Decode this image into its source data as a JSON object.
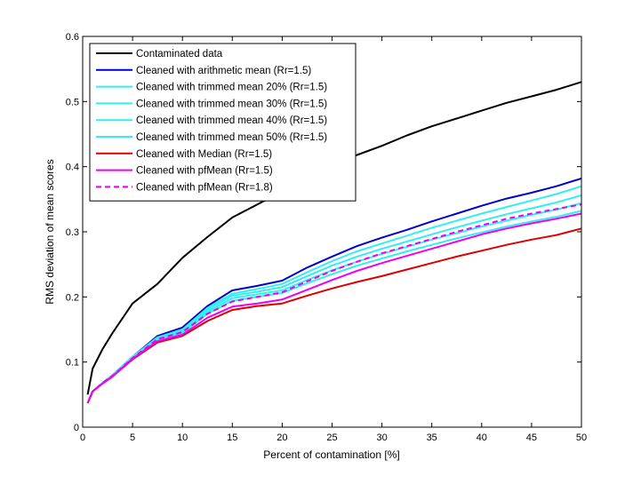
{
  "chart_data": {
    "type": "line",
    "xlabel": "Percent of contamination [%]",
    "ylabel": "RMS deviation of mean scores",
    "xlim": [
      0,
      50
    ],
    "ylim": [
      0,
      0.6
    ],
    "xticks": [
      0,
      5,
      10,
      15,
      20,
      25,
      30,
      35,
      40,
      45,
      50
    ],
    "yticks": [
      0,
      0.1,
      0.2,
      0.3,
      0.4,
      0.5,
      0.6
    ],
    "xtick_labels": [
      "0",
      "5",
      "10",
      "15",
      "20",
      "25",
      "30",
      "35",
      "40",
      "45",
      "50"
    ],
    "ytick_labels": [
      "0",
      "0.1",
      "0.2",
      "0.3",
      "0.4",
      "0.5",
      "0.6"
    ],
    "grid": false,
    "legend_position": "top-left",
    "x": [
      0.5,
      1,
      2,
      3,
      5,
      7.5,
      10,
      12.5,
      15,
      17.5,
      20,
      22.5,
      25,
      27.5,
      30,
      32.5,
      35,
      37.5,
      40,
      42.5,
      45,
      47.5,
      50
    ],
    "series": [
      {
        "name": "Contaminated data",
        "color": "#000000",
        "dash": false,
        "values": [
          0.05,
          0.09,
          0.12,
          0.145,
          0.19,
          0.22,
          0.26,
          0.292,
          0.322,
          0.342,
          0.362,
          0.382,
          0.402,
          0.418,
          0.432,
          0.448,
          0.462,
          0.474,
          0.486,
          0.498,
          0.508,
          0.518,
          0.53
        ]
      },
      {
        "name": "Cleaned with arithmetic mean (Rr=1.5)",
        "color": "#0000cc",
        "dash": false,
        "values": [
          0.037,
          0.055,
          0.068,
          0.08,
          0.108,
          0.14,
          0.153,
          0.186,
          0.21,
          0.217,
          0.225,
          0.245,
          0.262,
          0.278,
          0.291,
          0.303,
          0.316,
          0.328,
          0.34,
          0.351,
          0.36,
          0.37,
          0.382
        ]
      },
      {
        "name": "Cleaned with trimmed mean 20% (Rr=1.5)",
        "color": "#33eeee",
        "dash": false,
        "values": [
          0.037,
          0.055,
          0.068,
          0.08,
          0.108,
          0.138,
          0.15,
          0.183,
          0.205,
          0.212,
          0.22,
          0.238,
          0.255,
          0.27,
          0.282,
          0.294,
          0.306,
          0.317,
          0.328,
          0.338,
          0.348,
          0.358,
          0.37
        ]
      },
      {
        "name": "Cleaned with trimmed mean 30% (Rr=1.5)",
        "color": "#33eeee",
        "dash": false,
        "values": [
          0.037,
          0.055,
          0.068,
          0.079,
          0.107,
          0.137,
          0.148,
          0.18,
          0.202,
          0.208,
          0.215,
          0.232,
          0.248,
          0.262,
          0.274,
          0.285,
          0.296,
          0.307,
          0.317,
          0.327,
          0.336,
          0.345,
          0.356
        ]
      },
      {
        "name": "Cleaned with trimmed mean 40% (Rr=1.5)",
        "color": "#33eeee",
        "dash": false,
        "values": [
          0.037,
          0.055,
          0.068,
          0.079,
          0.107,
          0.136,
          0.146,
          0.177,
          0.198,
          0.204,
          0.21,
          0.226,
          0.241,
          0.254,
          0.266,
          0.277,
          0.288,
          0.298,
          0.308,
          0.317,
          0.326,
          0.334,
          0.344
        ]
      },
      {
        "name": "Cleaned with trimmed mean 50% (Rr=1.5)",
        "color": "#33eeee",
        "dash": false,
        "values": [
          0.037,
          0.055,
          0.068,
          0.079,
          0.106,
          0.135,
          0.144,
          0.174,
          0.194,
          0.2,
          0.206,
          0.221,
          0.235,
          0.248,
          0.259,
          0.27,
          0.28,
          0.29,
          0.299,
          0.308,
          0.316,
          0.323,
          0.332
        ]
      },
      {
        "name": "Cleaned with Median (Rr=1.5)",
        "color": "#dd0000",
        "dash": false,
        "values": [
          0.037,
          0.055,
          0.067,
          0.078,
          0.104,
          0.13,
          0.14,
          0.163,
          0.18,
          0.186,
          0.19,
          0.202,
          0.213,
          0.223,
          0.232,
          0.242,
          0.252,
          0.262,
          0.271,
          0.28,
          0.288,
          0.295,
          0.305
        ]
      },
      {
        "name": "Cleaned with pfMean (Rr=1.5)",
        "color": "#ee00ee",
        "dash": false,
        "values": [
          0.037,
          0.055,
          0.067,
          0.078,
          0.105,
          0.132,
          0.142,
          0.168,
          0.185,
          0.19,
          0.196,
          0.211,
          0.226,
          0.24,
          0.252,
          0.263,
          0.274,
          0.285,
          0.296,
          0.305,
          0.313,
          0.32,
          0.328
        ]
      },
      {
        "name": "Cleaned with pfMean (Rr=1.8)",
        "color": "#ee00ee",
        "dash": true,
        "values": [
          0.037,
          0.055,
          0.068,
          0.079,
          0.106,
          0.135,
          0.146,
          0.174,
          0.193,
          0.2,
          0.207,
          0.224,
          0.24,
          0.254,
          0.267,
          0.278,
          0.289,
          0.3,
          0.31,
          0.32,
          0.328,
          0.335,
          0.342
        ]
      }
    ]
  }
}
